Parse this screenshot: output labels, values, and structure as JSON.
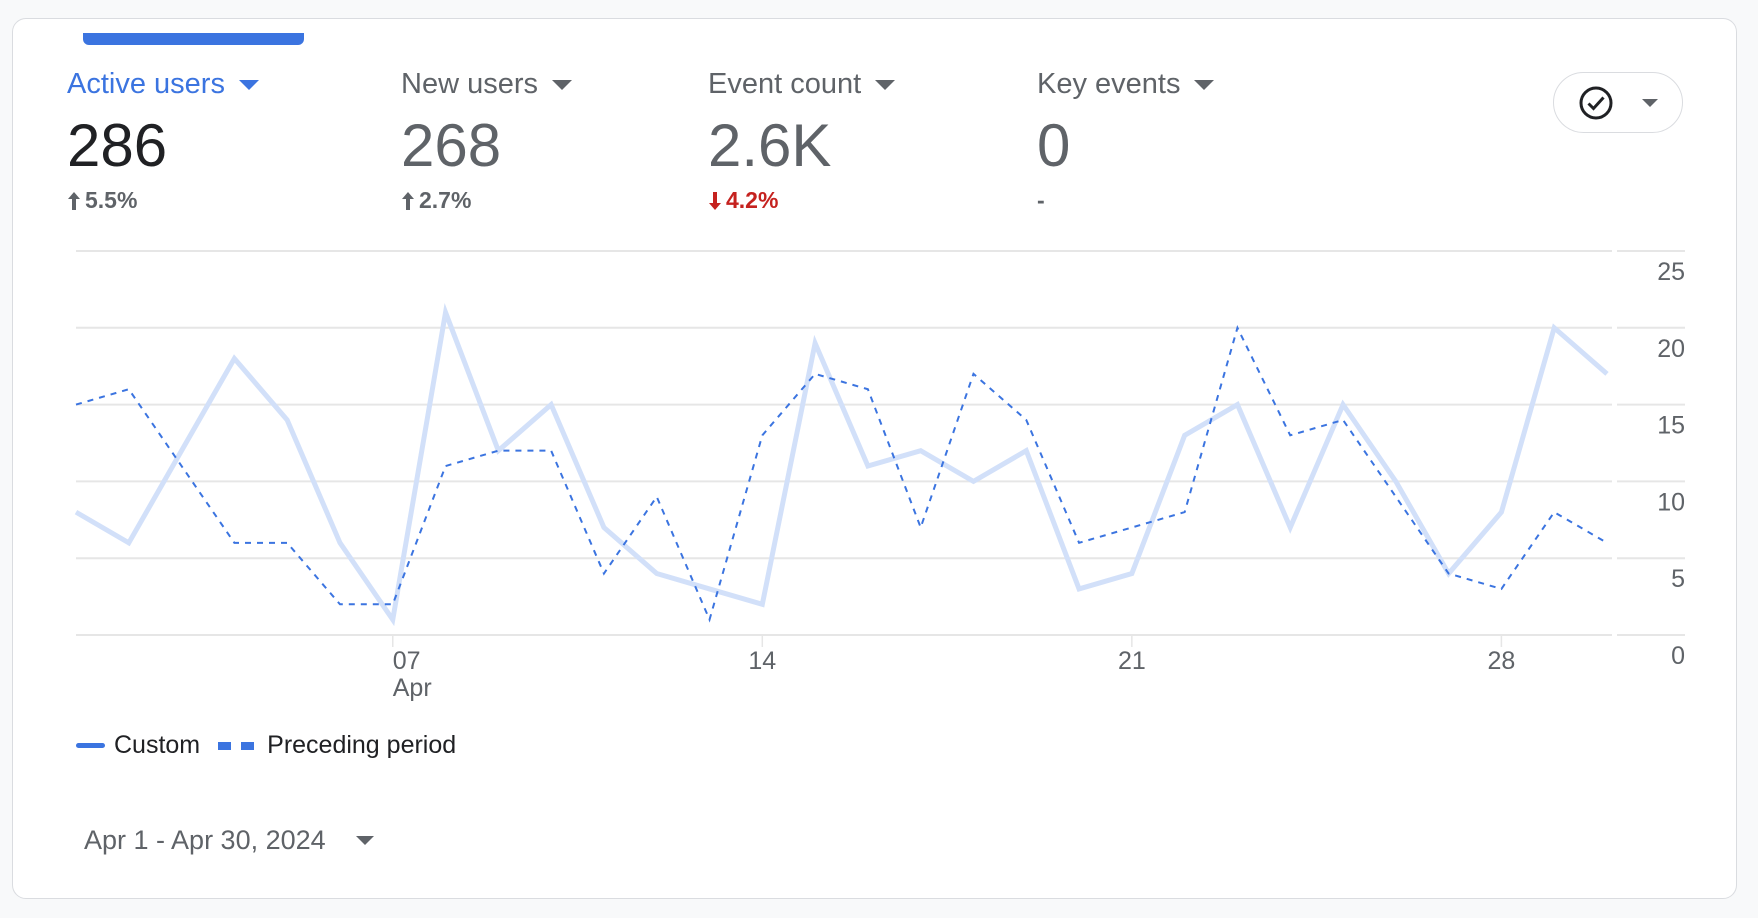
{
  "metrics": [
    {
      "label": "Active users",
      "value": "286",
      "change": "5.5%",
      "direction": "up",
      "active": true
    },
    {
      "label": "New users",
      "value": "268",
      "change": "2.7%",
      "direction": "up",
      "active": false
    },
    {
      "label": "Event count",
      "value": "2.6K",
      "change": "4.2%",
      "direction": "down",
      "active": false
    },
    {
      "label": "Key events",
      "value": "0",
      "change": "-",
      "direction": "none",
      "active": false
    }
  ],
  "compare_button": {
    "icon": "check-circle-icon"
  },
  "date_range": "Apr 1 - Apr 30, 2024",
  "colors": {
    "accent": "#3b74e0",
    "custom_line": "#d2e0f9",
    "down": "#c5221f"
  },
  "chart_data": {
    "type": "line",
    "title": "",
    "xlabel": "",
    "ylabel": "",
    "x": [
      1,
      2,
      3,
      4,
      5,
      6,
      7,
      8,
      9,
      10,
      11,
      12,
      13,
      14,
      15,
      16,
      17,
      18,
      19,
      20,
      21,
      22,
      23,
      24,
      25,
      26,
      27,
      28,
      29,
      30
    ],
    "x_ticks": [
      {
        "day": 7,
        "label": "07",
        "sublabel": "Apr"
      },
      {
        "day": 14,
        "label": "14"
      },
      {
        "day": 21,
        "label": "21"
      },
      {
        "day": 28,
        "label": "28"
      }
    ],
    "y_ticks": [
      "0",
      "5",
      "10",
      "15",
      "20",
      "25"
    ],
    "ylim": [
      0,
      25
    ],
    "grid": true,
    "legend_position": "bottom-left",
    "series": [
      {
        "name": "Custom",
        "style": "solid",
        "values": [
          8,
          6,
          12,
          18,
          14,
          6,
          1,
          21,
          12,
          15,
          7,
          4,
          3,
          2,
          19,
          11,
          12,
          10,
          12,
          3,
          4,
          13,
          15,
          7,
          15,
          10,
          4,
          8,
          20,
          17
        ]
      },
      {
        "name": "Preceding period",
        "style": "dashed",
        "values": [
          15,
          16,
          11,
          6,
          6,
          2,
          2,
          11,
          12,
          12,
          4,
          9,
          1,
          13,
          17,
          16,
          7,
          17,
          14,
          6,
          7,
          8,
          20,
          13,
          14,
          9,
          4,
          3,
          8,
          6
        ]
      }
    ]
  }
}
